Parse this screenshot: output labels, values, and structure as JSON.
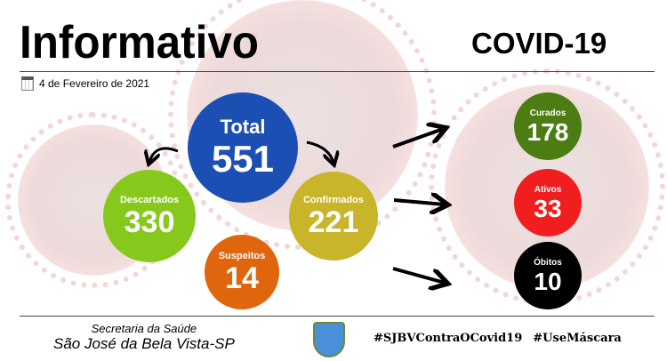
{
  "header": {
    "title": "Informativo",
    "subtitle": "COVID-19",
    "date": "4 de Fevereiro de 2021"
  },
  "stats": {
    "total": {
      "label": "Total",
      "value": "551",
      "color": "#1c4fb4"
    },
    "descartados": {
      "label": "Descartados",
      "value": "330",
      "color": "#86c91c"
    },
    "confirmados": {
      "label": "Confirmados",
      "value": "221",
      "color": "#c8b52a"
    },
    "suspeitos": {
      "label": "Suspeitos",
      "value": "14",
      "color": "#e0660e"
    },
    "curados": {
      "label": "Curados",
      "value": "178",
      "color": "#4b7d12"
    },
    "ativos": {
      "label": "Ativos",
      "value": "33",
      "color": "#f01e1e"
    },
    "obitos": {
      "label": "Óbitos",
      "value": "10",
      "color": "#000000"
    }
  },
  "footer": {
    "org_line1": "Secretaria da Saúde",
    "org_line2": "São José da Bela Vista-SP",
    "hashtag1": "#SJBVContraOCovid19",
    "hashtag2": "#UseMáscara"
  },
  "icons": [
    "calendar-icon",
    "arrow-icon",
    "crest-logo"
  ]
}
